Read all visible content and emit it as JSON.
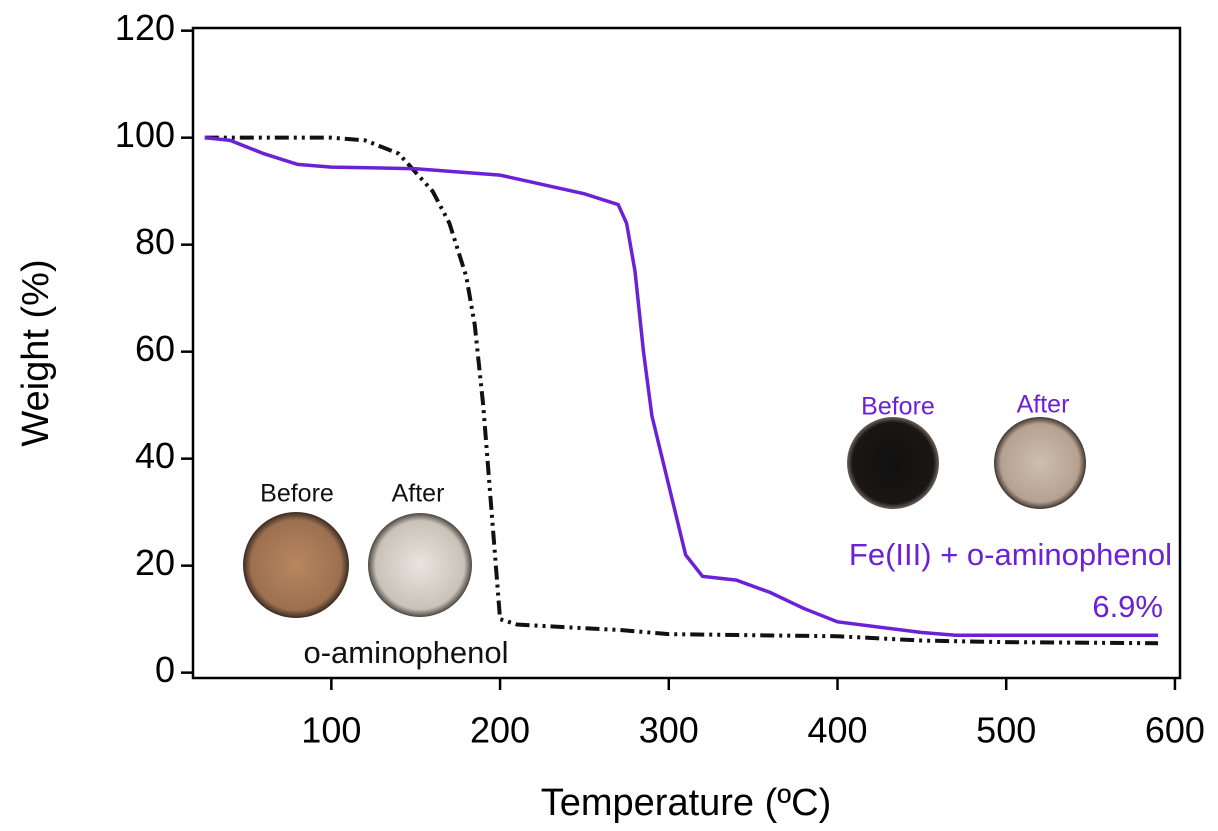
{
  "chart_data": {
    "type": "line",
    "xlabel": "Temperature (ºC)",
    "ylabel": "Weight (%)",
    "xlim": [
      18,
      603
    ],
    "ylim": [
      -1,
      120.5
    ],
    "xticks": [
      100,
      200,
      300,
      400,
      500,
      600
    ],
    "yticks": [
      0,
      20,
      40,
      60,
      80,
      100,
      120
    ],
    "series": [
      {
        "name": "o-aminophenol",
        "color": "#111111",
        "dash": true,
        "x": [
          25,
          100,
          120,
          140,
          160,
          170,
          180,
          185,
          190,
          195,
          200,
          210,
          250,
          270,
          300,
          400,
          450,
          500,
          590
        ],
        "values": [
          100,
          100,
          99.5,
          97,
          90,
          84,
          74,
          65,
          50,
          30,
          10,
          9,
          8.3,
          8,
          7.2,
          6.8,
          6,
          5.7,
          5.5
        ]
      },
      {
        "name": "Fe(III) + o-aminophenol",
        "color": "#6b21d6",
        "dash": false,
        "x": [
          25,
          40,
          60,
          80,
          100,
          150,
          200,
          250,
          270,
          275,
          280,
          285,
          290,
          300,
          310,
          320,
          340,
          360,
          380,
          400,
          450,
          470,
          500,
          590
        ],
        "values": [
          100,
          99.5,
          97,
          95,
          94.5,
          94.2,
          93,
          89.5,
          87.5,
          84,
          75,
          60,
          48,
          35,
          22,
          18,
          17.3,
          15,
          12,
          9.5,
          7.5,
          7,
          7,
          7
        ]
      }
    ],
    "annotations": [
      {
        "text": "Before",
        "color": "#111111"
      },
      {
        "text": "After",
        "color": "#111111"
      },
      {
        "text": "Before",
        "color": "#6b21d6"
      },
      {
        "text": "After",
        "color": "#6b21d6"
      },
      {
        "text": "6.9%",
        "color": "#6b21d6"
      }
    ]
  }
}
